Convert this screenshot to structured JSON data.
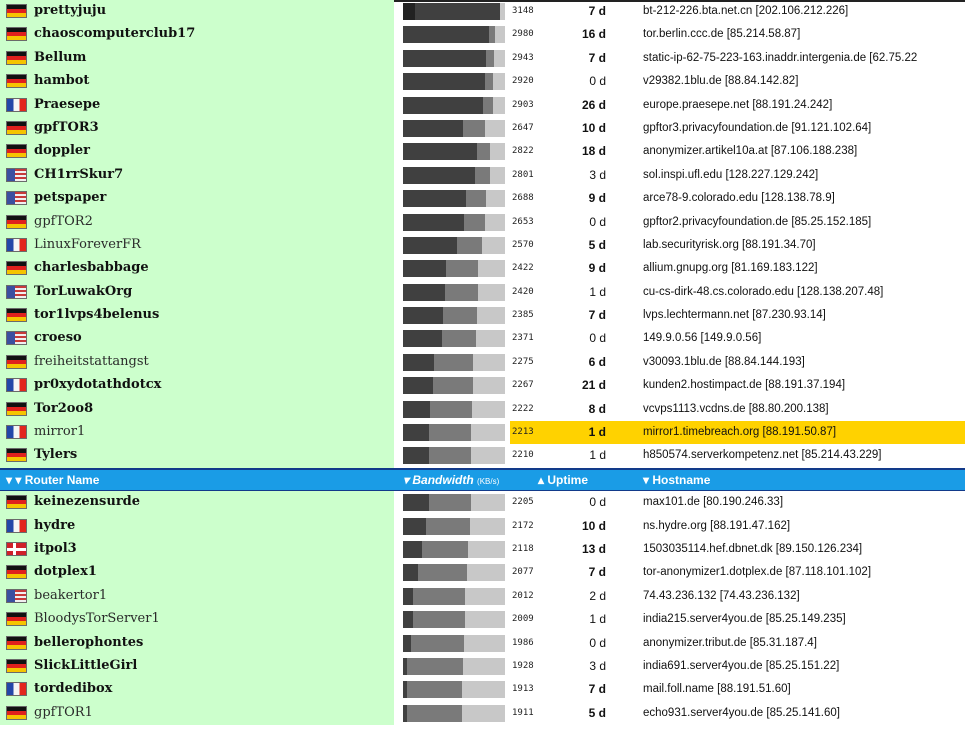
{
  "header": {
    "router_name": "▾ ▾ Router Name",
    "bandwidth": "▾ Bandwidth",
    "bandwidth_unit": "(KB/s)",
    "uptime": "▴ Uptime",
    "hostname": "▾ Hostname"
  },
  "bandwidth_max": 3300,
  "rows_top": [
    {
      "flag": "de",
      "name": "prettyjuju",
      "bold": true,
      "bw": 3148,
      "bw_fill": 0.12,
      "uptime": "7 d",
      "uptime_bold": true,
      "host": "bt-212-226.bta.net.cn [202.106.212.226]"
    },
    {
      "flag": "de",
      "name": "chaoscomputerclub17",
      "bold": true,
      "bw": 2980,
      "bw_fill": 0.0,
      "uptime": "16 d",
      "uptime_bold": true,
      "host": "tor.berlin.ccc.de [85.214.58.87]"
    },
    {
      "flag": "de",
      "name": "Bellum",
      "bold": true,
      "bw": 2943,
      "bw_fill": 0.0,
      "uptime": "7 d",
      "uptime_bold": true,
      "host": "static-ip-62-75-223-163.inaddr.intergenia.de [62.75.22"
    },
    {
      "flag": "de",
      "name": "hambot",
      "bold": true,
      "bw": 2920,
      "bw_fill": 0.0,
      "uptime": "0 d",
      "uptime_bold": false,
      "host": "v29382.1blu.de [88.84.142.82]"
    },
    {
      "flag": "fr",
      "name": "Praesepe",
      "bold": true,
      "bw": 2903,
      "bw_fill": 0.0,
      "uptime": "26 d",
      "uptime_bold": true,
      "host": "europe.praesepe.net [88.191.24.242]"
    },
    {
      "flag": "de",
      "name": "gpfTOR3",
      "bold": true,
      "bw": 2647,
      "bw_fill": 0.0,
      "uptime": "10 d",
      "uptime_bold": true,
      "host": "gpftor3.privacyfoundation.de [91.121.102.64]"
    },
    {
      "flag": "de",
      "name": "doppler",
      "bold": true,
      "bw": 2822,
      "bw_fill": 0.0,
      "uptime": "18 d",
      "uptime_bold": true,
      "host": "anonymizer.artikel10a.at [87.106.188.238]"
    },
    {
      "flag": "us",
      "name": "CH1rrSkur7",
      "bold": true,
      "bw": 2801,
      "bw_fill": 0.0,
      "uptime": "3 d",
      "uptime_bold": false,
      "host": "sol.inspi.ufl.edu [128.227.129.242]"
    },
    {
      "flag": "us",
      "name": "petspaper",
      "bold": true,
      "bw": 2688,
      "bw_fill": 0.0,
      "uptime": "9 d",
      "uptime_bold": true,
      "host": "arce78-9.colorado.edu [128.138.78.9]"
    },
    {
      "flag": "de",
      "name": "gpfTOR2",
      "bold": false,
      "bw": 2653,
      "bw_fill": 0.0,
      "uptime": "0 d",
      "uptime_bold": false,
      "host": "gpftor2.privacyfoundation.de [85.25.152.185]"
    },
    {
      "flag": "fr",
      "name": "LinuxForeverFR",
      "bold": false,
      "bw": 2570,
      "bw_fill": 0.0,
      "uptime": "5 d",
      "uptime_bold": true,
      "host": "lab.securityrisk.org [88.191.34.70]"
    },
    {
      "flag": "de",
      "name": "charlesbabbage",
      "bold": true,
      "bw": 2422,
      "bw_fill": 0.0,
      "uptime": "9 d",
      "uptime_bold": true,
      "host": "allium.gnupg.org [81.169.183.122]"
    },
    {
      "flag": "us",
      "name": "TorLuwakOrg",
      "bold": true,
      "bw": 2420,
      "bw_fill": 0.0,
      "uptime": "1 d",
      "uptime_bold": false,
      "host": "cu-cs-dirk-48.cs.colorado.edu [128.138.207.48]"
    },
    {
      "flag": "de",
      "name": "tor1lvps4belenus",
      "bold": true,
      "bw": 2385,
      "bw_fill": 0.0,
      "uptime": "7 d",
      "uptime_bold": true,
      "host": "lvps.lechtermann.net [87.230.93.14]"
    },
    {
      "flag": "us",
      "name": "croeso",
      "bold": true,
      "bw": 2371,
      "bw_fill": 0.0,
      "uptime": "0 d",
      "uptime_bold": false,
      "host": "149.9.0.56 [149.9.0.56]"
    },
    {
      "flag": "de",
      "name": "freiheitstattangst",
      "bold": false,
      "bw": 2275,
      "bw_fill": 0.0,
      "uptime": "6 d",
      "uptime_bold": true,
      "host": "v30093.1blu.de [88.84.144.193]"
    },
    {
      "flag": "fr",
      "name": "pr0xydotathdotcx",
      "bold": true,
      "bw": 2267,
      "bw_fill": 0.0,
      "uptime": "21 d",
      "uptime_bold": true,
      "host": "kunden2.hostimpact.de [88.191.37.194]"
    },
    {
      "flag": "de",
      "name": "Tor2oo8",
      "bold": true,
      "bw": 2222,
      "bw_fill": 0.0,
      "uptime": "8 d",
      "uptime_bold": true,
      "host": "vcvps1113.vcdns.de [88.80.200.138]"
    },
    {
      "flag": "fr",
      "name": "mirror1",
      "bold": false,
      "bw": 2213,
      "bw_fill": 0.0,
      "uptime": "1 d",
      "uptime_bold": true,
      "host": "mirror1.timebreach.org [88.191.50.87]",
      "highlight": true
    },
    {
      "flag": "de",
      "name": "Tylers",
      "bold": true,
      "bw": 2210,
      "bw_fill": 0.0,
      "uptime": "1 d",
      "uptime_bold": false,
      "host": "h850574.serverkompetenz.net [85.214.43.229]"
    }
  ],
  "rows_bottom": [
    {
      "flag": "de",
      "name": "keinezensurde",
      "bold": true,
      "bw": 2205,
      "bw_fill": 0.0,
      "uptime": "0 d",
      "uptime_bold": false,
      "host": "max101.de [80.190.246.33]"
    },
    {
      "flag": "fr",
      "name": "hydre",
      "bold": true,
      "bw": 2172,
      "bw_fill": 0.0,
      "uptime": "10 d",
      "uptime_bold": true,
      "host": "ns.hydre.org [88.191.47.162]"
    },
    {
      "flag": "dk",
      "name": "itpol3",
      "bold": true,
      "bw": 2118,
      "bw_fill": 0.0,
      "uptime": "13 d",
      "uptime_bold": true,
      "host": "1503035114.hef.dbnet.dk [89.150.126.234]"
    },
    {
      "flag": "de",
      "name": "dotplex1",
      "bold": true,
      "bw": 2077,
      "bw_fill": 0.0,
      "uptime": "7 d",
      "uptime_bold": true,
      "host": "tor-anonymizer1.dotplex.de [87.118.101.102]"
    },
    {
      "flag": "us",
      "name": "beakertor1",
      "bold": false,
      "bw": 2012,
      "bw_fill": 0.0,
      "uptime": "2 d",
      "uptime_bold": false,
      "host": "74.43.236.132 [74.43.236.132]"
    },
    {
      "flag": "de",
      "name": "BloodysTorServer1",
      "bold": false,
      "bw": 2009,
      "bw_fill": 0.0,
      "uptime": "1 d",
      "uptime_bold": false,
      "host": "india215.server4you.de [85.25.149.235]"
    },
    {
      "flag": "de",
      "name": "bellerophontes",
      "bold": true,
      "bw": 1986,
      "bw_fill": 0.0,
      "uptime": "0 d",
      "uptime_bold": false,
      "host": "anonymizer.tribut.de [85.31.187.4]"
    },
    {
      "flag": "de",
      "name": "SlickLittleGirl",
      "bold": true,
      "bw": 1928,
      "bw_fill": 0.0,
      "uptime": "3 d",
      "uptime_bold": false,
      "host": "india691.server4you.de [85.25.151.22]"
    },
    {
      "flag": "fr",
      "name": "tordedibox",
      "bold": true,
      "bw": 1913,
      "bw_fill": 0.0,
      "uptime": "7 d",
      "uptime_bold": true,
      "host": "mail.foll.name [88.191.51.60]"
    },
    {
      "flag": "de",
      "name": "gpfTOR1",
      "bold": false,
      "bw": 1911,
      "bw_fill": 0.0,
      "uptime": "5 d",
      "uptime_bold": true,
      "host": "echo931.server4you.de [85.25.141.60]"
    }
  ]
}
